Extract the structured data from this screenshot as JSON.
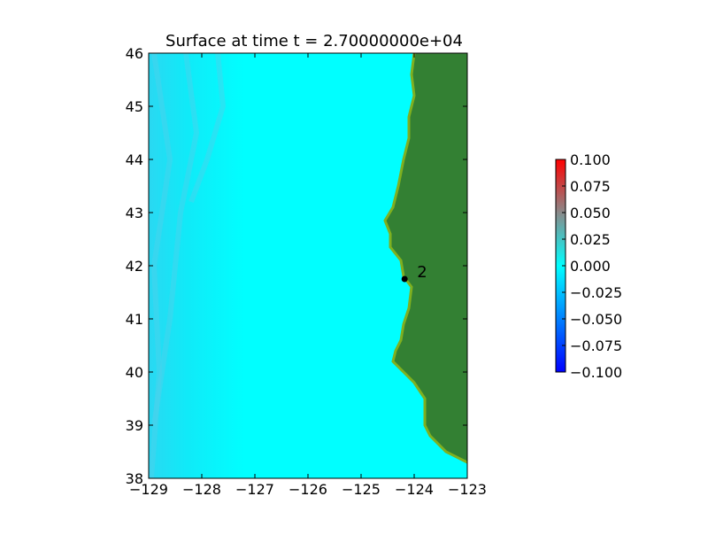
{
  "chart_data": {
    "type": "heatmap",
    "title": "Surface at time t = 2.70000000e+04",
    "xlabel": "",
    "ylabel": "",
    "xlim": [
      -129,
      -123
    ],
    "ylim": [
      38,
      46
    ],
    "x_ticks": [
      "−129",
      "−128",
      "−127",
      "−126",
      "−125",
      "−124",
      "−123"
    ],
    "y_ticks": [
      "38",
      "39",
      "40",
      "41",
      "42",
      "43",
      "44",
      "45",
      "46"
    ],
    "grid": false,
    "colorbar": {
      "range": [
        -0.1,
        0.1
      ],
      "ticks": [
        "−0.100",
        "−0.075",
        "−0.050",
        "−0.025",
        "0.000",
        "0.025",
        "0.050",
        "0.075",
        "0.100"
      ],
      "colors": [
        "#0000ff",
        "#00e5ff",
        "#00ffff",
        "#66bbbb",
        "#ff0000"
      ]
    },
    "colors": {
      "water": "#00ffff",
      "land": "#338033",
      "shore": "#7fb020",
      "marker": "#000000"
    },
    "gauges": [
      {
        "label": "2",
        "lon": -124.18,
        "lat": 41.75
      }
    ],
    "coastline": [
      [
        -124.0,
        46.0
      ],
      [
        -124.05,
        45.6
      ],
      [
        -124.0,
        45.2
      ],
      [
        -124.1,
        44.8
      ],
      [
        -124.1,
        44.4
      ],
      [
        -124.2,
        44.0
      ],
      [
        -124.3,
        43.5
      ],
      [
        -124.4,
        43.1
      ],
      [
        -124.55,
        42.85
      ],
      [
        -124.45,
        42.6
      ],
      [
        -124.45,
        42.35
      ],
      [
        -124.25,
        42.1
      ],
      [
        -124.2,
        41.8
      ],
      [
        -124.05,
        41.6
      ],
      [
        -124.1,
        41.2
      ],
      [
        -124.2,
        40.9
      ],
      [
        -124.25,
        40.6
      ],
      [
        -124.35,
        40.4
      ],
      [
        -124.4,
        40.2
      ],
      [
        -124.2,
        40.0
      ],
      [
        -124.0,
        39.8
      ],
      [
        -123.8,
        39.5
      ],
      [
        -123.8,
        39.0
      ],
      [
        -123.7,
        38.8
      ],
      [
        -123.4,
        38.5
      ],
      [
        -123.0,
        38.3
      ]
    ]
  }
}
